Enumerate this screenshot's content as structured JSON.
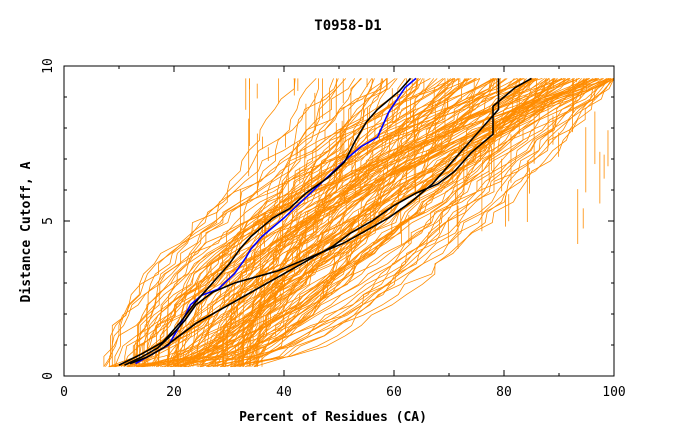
{
  "chart_data": {
    "type": "line",
    "title": "T0958-D1",
    "xlabel": "Percent of Residues (CA)",
    "ylabel": "Distance Cutoff, A",
    "xlim": [
      0,
      100
    ],
    "ylim": [
      0,
      10
    ],
    "x_ticks": [
      "0",
      "20",
      "40",
      "60",
      "80",
      "100"
    ],
    "y_ticks": [
      "0",
      "5",
      "10"
    ],
    "colors": {
      "background_models": "#ff8c00",
      "highlight_primary": "#0000ff",
      "highlight_secondary": "#000000"
    },
    "series": [
      {
        "color": "#0000ff",
        "x": [
          13,
          16,
          19,
          21,
          23,
          25,
          28,
          31,
          33,
          34,
          36,
          40,
          43,
          46,
          49,
          52,
          54,
          57,
          59,
          62,
          64
        ],
        "y": [
          0.4,
          0.7,
          1.0,
          1.6,
          2.3,
          2.6,
          2.8,
          3.3,
          3.8,
          4.1,
          4.5,
          5.1,
          5.6,
          6.1,
          6.6,
          7.1,
          7.4,
          7.7,
          8.5,
          9.3,
          9.6
        ]
      },
      {
        "color": "#000000",
        "x": [
          10,
          14,
          18,
          21,
          24,
          27,
          30,
          32,
          34,
          36,
          38,
          41,
          44,
          48,
          51,
          53,
          55,
          57,
          59,
          61,
          63
        ],
        "y": [
          0.35,
          0.7,
          1.1,
          1.7,
          2.4,
          3.0,
          3.6,
          4.1,
          4.5,
          4.8,
          5.1,
          5.4,
          5.9,
          6.4,
          6.9,
          7.6,
          8.2,
          8.6,
          8.9,
          9.2,
          9.6
        ]
      },
      {
        "color": "#000000",
        "x": [
          12,
          15,
          18,
          21,
          24,
          28,
          32,
          36,
          40,
          43,
          46,
          49,
          52,
          56,
          60,
          64,
          68,
          71,
          74,
          78,
          78,
          82,
          85
        ],
        "y": [
          0.4,
          0.6,
          0.9,
          1.3,
          1.7,
          2.1,
          2.5,
          2.9,
          3.3,
          3.6,
          3.9,
          4.2,
          4.6,
          5.0,
          5.5,
          5.9,
          6.2,
          6.6,
          7.2,
          7.8,
          8.7,
          9.3,
          9.6
        ]
      },
      {
        "color": "#000000",
        "x": [
          11,
          14,
          17,
          20,
          22,
          24,
          27,
          31,
          35,
          39,
          43,
          47,
          51,
          55,
          59,
          63,
          67,
          70,
          73,
          76,
          79,
          79,
          79
        ],
        "y": [
          0.35,
          0.6,
          0.9,
          1.4,
          1.8,
          2.3,
          2.7,
          3.0,
          3.2,
          3.4,
          3.7,
          4.0,
          4.3,
          4.7,
          5.1,
          5.6,
          6.2,
          6.8,
          7.4,
          8.0,
          8.6,
          9.1,
          9.6
        ]
      }
    ]
  }
}
